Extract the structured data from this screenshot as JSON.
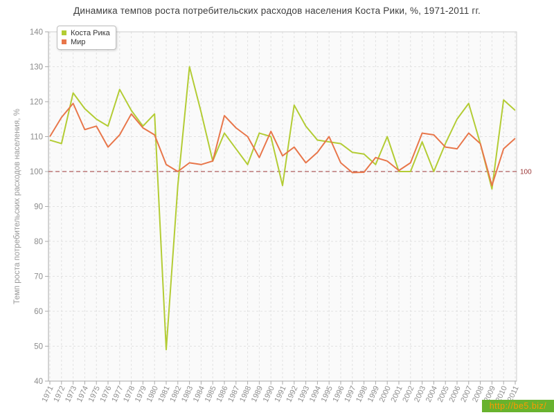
{
  "chart_data": {
    "type": "line",
    "title": "Динамика темпов роста потребительских расходов населения Коста Рики, %, 1971-2011 гг.",
    "ylabel": "Темп роста потребительских расходов населения, %",
    "xlabel": "",
    "ylim": [
      40,
      140
    ],
    "ytick_step": 10,
    "grid": true,
    "legend_position": "top-left",
    "x": [
      1971,
      1972,
      1973,
      1974,
      1975,
      1976,
      1977,
      1978,
      1979,
      1980,
      1981,
      1982,
      1983,
      1984,
      1985,
      1986,
      1987,
      1988,
      1989,
      1990,
      1991,
      1992,
      1993,
      1994,
      1995,
      1996,
      1997,
      1998,
      1999,
      2000,
      2001,
      2002,
      2003,
      2004,
      2005,
      2006,
      2007,
      2008,
      2009,
      2010,
      2011
    ],
    "series": [
      {
        "name": "Коста Рика",
        "color": "#b3cc34",
        "values": [
          109,
          108,
          122.5,
          118,
          115,
          113,
          123.5,
          117.5,
          113,
          116.5,
          49,
          96,
          130,
          117,
          103,
          111,
          106.5,
          102,
          111,
          110,
          96,
          119,
          113,
          109,
          108.5,
          108,
          105.5,
          105,
          102,
          110,
          100,
          100,
          108.5,
          100,
          108,
          115,
          119.5,
          108,
          95,
          120.5,
          117.5
        ]
      },
      {
        "name": "Мир",
        "color": "#e8764a",
        "values": [
          110,
          115.5,
          119.5,
          112,
          113,
          107,
          110.5,
          116.5,
          112.5,
          110.5,
          102,
          100,
          102.5,
          102,
          103,
          116,
          112.5,
          110,
          104,
          111.5,
          104.5,
          107,
          102.5,
          105.5,
          110,
          102.5,
          99.7,
          99.8,
          104,
          103,
          100.3,
          102.5,
          111,
          110.5,
          107,
          106.5,
          111,
          108,
          96,
          106.5,
          109.5
        ]
      }
    ],
    "ref_line": {
      "value": 100,
      "label": "100",
      "color": "#993333"
    },
    "colors": {
      "plot_bg": "#fafafa",
      "grid": "#e1e1e1",
      "frame": "#cccccc",
      "axis": "#aaaaaa",
      "tick_label": "#8c8c8c",
      "axis_title": "#999999"
    }
  },
  "watermark": {
    "text": "http://be5.biz/",
    "bg": "#68b22d",
    "fg": "#ff9900"
  }
}
